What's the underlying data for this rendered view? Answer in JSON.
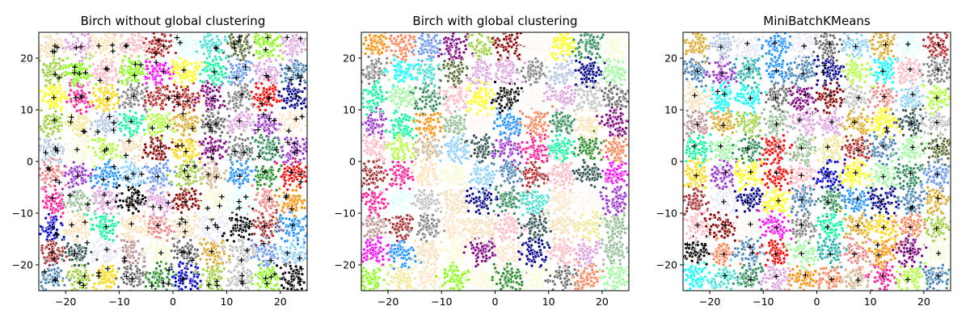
{
  "chart_data": [
    {
      "type": "scatter",
      "title": "Birch without global clustering",
      "xlim": [
        -25,
        25
      ],
      "ylim": [
        -25,
        25
      ],
      "xticks": [
        -20,
        -10,
        0,
        10,
        20
      ],
      "yticks": [
        -20,
        -10,
        0,
        10,
        20
      ],
      "xtick_labels": [
        "−20",
        "−10",
        "0",
        "10",
        "20"
      ],
      "ytick_labels": [
        "−20",
        "−10",
        "0",
        "10",
        "20"
      ],
      "grid": false,
      "blob_centers": {
        "start": -22.5,
        "step": 5,
        "count": 10
      },
      "cluster_marker": "+",
      "cluster_centers_per_blob": "variable (about 1–5 per blob)"
    },
    {
      "type": "scatter",
      "title": "Birch with global clustering",
      "xlim": [
        -25,
        25
      ],
      "ylim": [
        -25,
        25
      ],
      "xticks": [
        -20,
        -10,
        0,
        10,
        20
      ],
      "yticks": [
        -20,
        -10,
        0,
        10,
        20
      ],
      "xtick_labels": [
        "−20",
        "−10",
        "0",
        "10",
        "20"
      ],
      "ytick_labels": [
        "−20",
        "−10",
        "0",
        "10",
        "20"
      ],
      "grid": false,
      "blob_centers": {
        "start": -22.5,
        "step": 5,
        "count": 10
      },
      "cluster_marker": "none"
    },
    {
      "type": "scatter",
      "title": "MiniBatchKMeans",
      "xlim": [
        -25,
        25
      ],
      "ylim": [
        -25,
        25
      ],
      "xticks": [
        -20,
        -10,
        0,
        10,
        20
      ],
      "yticks": [
        -20,
        -10,
        0,
        10,
        20
      ],
      "xtick_labels": [
        "−20",
        "−10",
        "0",
        "10",
        "20"
      ],
      "ytick_labels": [
        "−20",
        "−10",
        "0",
        "10",
        "20"
      ],
      "grid": false,
      "blob_centers": {
        "start": -22.5,
        "step": 5,
        "count": 10
      },
      "cluster_marker": "+",
      "cluster_centers_per_blob": "about 1 per blob, with a few blobs shared or split"
    }
  ],
  "palette": [
    "#7fff00",
    "#ff1493",
    "#f5deb3",
    "#d2b48c",
    "#b0c4de",
    "#c0c0c0",
    "#000000",
    "#808080",
    "#2e8b57",
    "#40e0d0",
    "#8b0000",
    "#00008b",
    "#ffd700",
    "#ff0000",
    "#9932cc",
    "#00ffff",
    "#ff00ff",
    "#8fbc8f",
    "#f08080",
    "#6495ed",
    "#556b2f",
    "#ff8c00",
    "#1e90ff",
    "#00fa9a",
    "#ffb6c1",
    "#9acd32",
    "#0000cd",
    "#dda0dd",
    "#228b22",
    "#ff7f50",
    "#b22222",
    "#ffe4c4",
    "#e0ffff",
    "#fafad2",
    "#daa520",
    "#4682b4",
    "#20b2aa",
    "#800080",
    "#ffff00",
    "#a52a2a",
    "#98fb98",
    "#87cefa",
    "#bc8f8f",
    "#fff5ee",
    "#ffdead",
    "#f0e68c",
    "#2f4f4f",
    "#696969",
    "#e6e6fa",
    "#adff2f"
  ]
}
